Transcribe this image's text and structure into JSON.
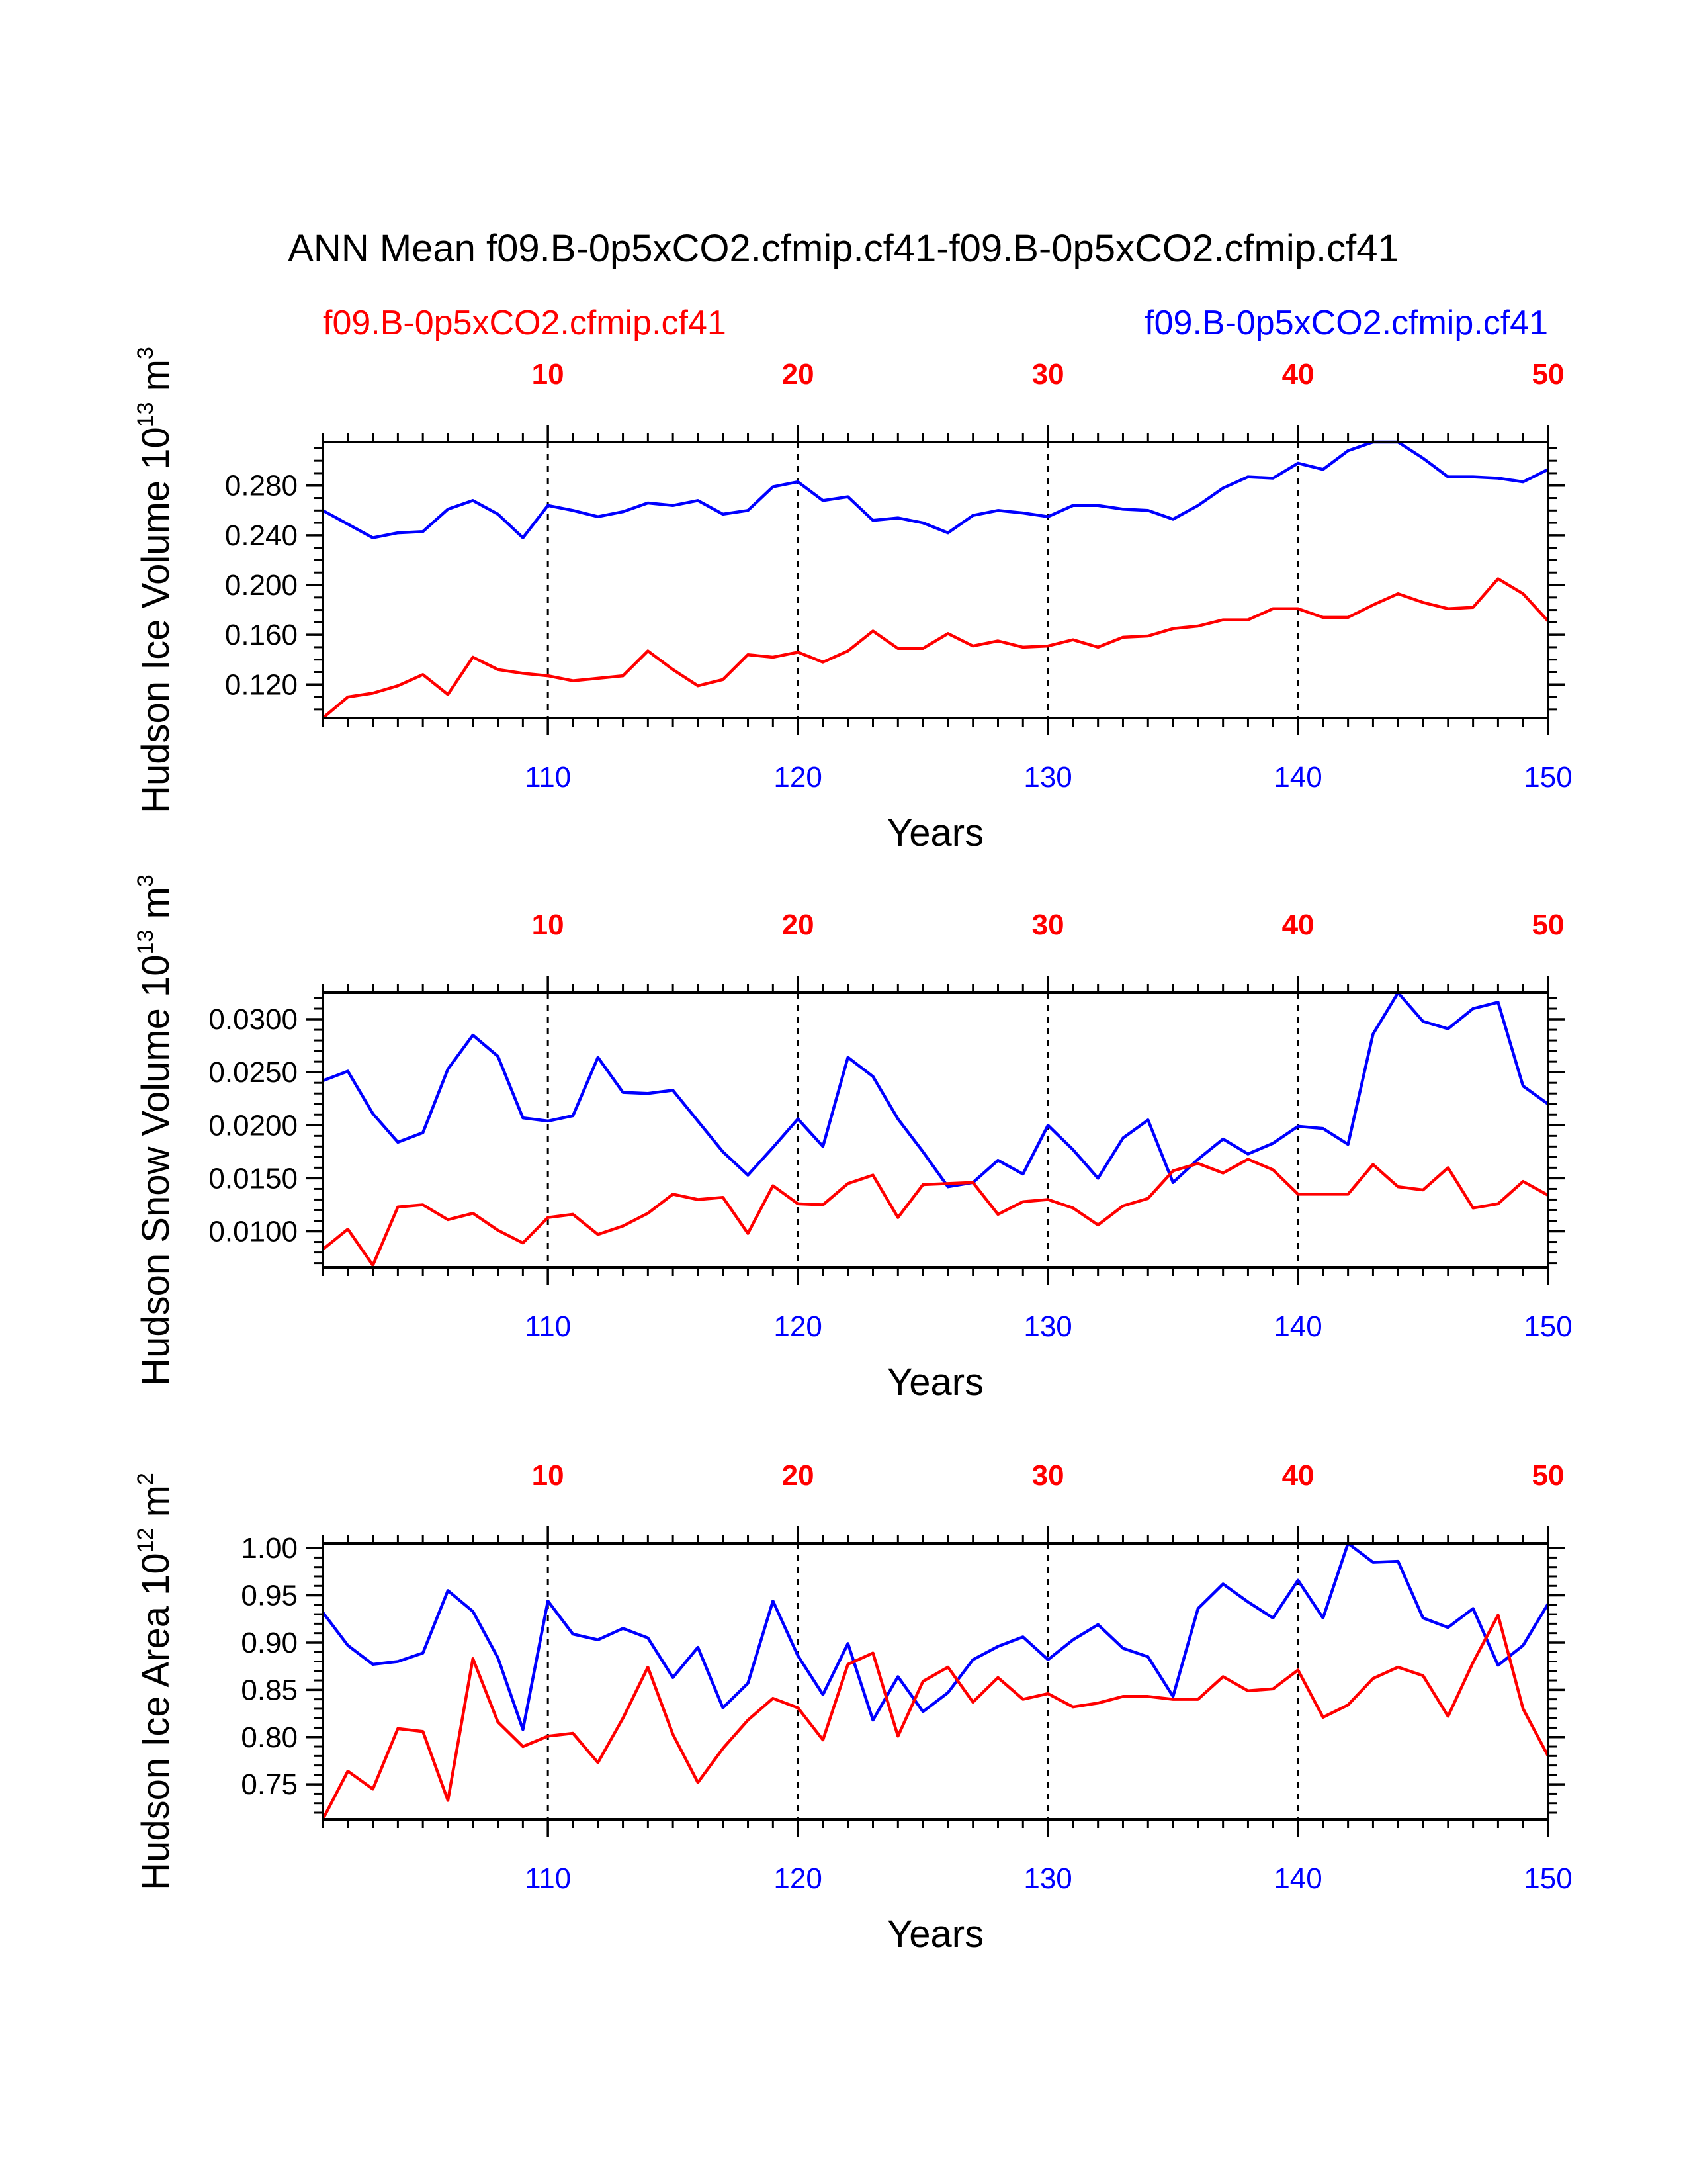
{
  "title": "ANN Mean f09.B-0p5xCO2.cfmip.cf41-f09.B-0p5xCO2.cfmip.cf41",
  "legend": {
    "left": {
      "label": "f09.B-0p5xCO2.cfmip.cf41",
      "color": "#ff0000"
    },
    "right": {
      "label": "f09.B-0p5xCO2.cfmip.cf41",
      "color": "#0000ff"
    }
  },
  "colors": {
    "series_red": "#ff0000",
    "series_blue": "#0000ff",
    "axis": "#000000"
  },
  "chart_data": [
    {
      "type": "line",
      "ylabel_main": "Hudson Ice Volume 10",
      "ylabel_exp": "13",
      "ylabel_unit": " m",
      "ylabel_unit_exp": "3",
      "xlabel": "Years",
      "x_bottom": {
        "range": [
          101,
          150
        ],
        "ticks": [
          110,
          120,
          130,
          140,
          150
        ]
      },
      "x_top": {
        "range": [
          1,
          50
        ],
        "ticks": [
          10,
          20,
          30,
          40,
          50
        ]
      },
      "y_range": [
        0.093,
        0.315
      ],
      "y_major_ticks": [
        0.12,
        0.16,
        0.2,
        0.24,
        0.28
      ],
      "y_tick_labels": [
        "0.120",
        "0.160",
        "0.200",
        "0.240",
        "0.280"
      ],
      "y_minor_step": 0.01,
      "series": [
        {
          "name": "f09.B-0p5xCO2.cfmip.cf41 (years 101-150)",
          "color": "#0000ff",
          "x_axis": "bottom",
          "values": [
            0.26,
            0.249,
            0.238,
            0.242,
            0.243,
            0.261,
            0.268,
            0.257,
            0.238,
            0.264,
            0.26,
            0.255,
            0.259,
            0.266,
            0.264,
            0.268,
            0.257,
            0.26,
            0.279,
            0.283,
            0.268,
            0.271,
            0.252,
            0.254,
            0.25,
            0.242,
            0.256,
            0.26,
            0.258,
            0.255,
            0.264,
            0.264,
            0.261,
            0.26,
            0.253,
            0.264,
            0.278,
            0.287,
            0.286,
            0.298,
            0.293,
            0.308,
            0.316,
            0.315,
            0.302,
            0.287,
            0.287,
            0.286,
            0.283,
            0.293
          ]
        },
        {
          "name": "f09.B-0p5xCO2.cfmip.cf41 (years 1-50)",
          "color": "#ff0000",
          "x_axis": "top",
          "values": [
            0.093,
            0.11,
            0.113,
            0.119,
            0.128,
            0.112,
            0.142,
            0.132,
            0.129,
            0.127,
            0.123,
            0.125,
            0.127,
            0.147,
            0.132,
            0.119,
            0.124,
            0.144,
            0.142,
            0.146,
            0.138,
            0.147,
            0.163,
            0.149,
            0.149,
            0.161,
            0.151,
            0.155,
            0.15,
            0.151,
            0.156,
            0.15,
            0.158,
            0.159,
            0.165,
            0.167,
            0.172,
            0.172,
            0.181,
            0.181,
            0.174,
            0.174,
            0.184,
            0.193,
            0.186,
            0.181,
            0.182,
            0.205,
            0.193,
            0.171
          ]
        }
      ]
    },
    {
      "type": "line",
      "ylabel_main": "Hudson Snow Volume 10",
      "ylabel_exp": "13",
      "ylabel_unit": " m",
      "ylabel_unit_exp": "3",
      "xlabel": "Years",
      "x_bottom": {
        "range": [
          101,
          150
        ],
        "ticks": [
          110,
          120,
          130,
          140,
          150
        ]
      },
      "x_top": {
        "range": [
          1,
          50
        ],
        "ticks": [
          10,
          20,
          30,
          40,
          50
        ]
      },
      "y_range": [
        0.0066,
        0.0325
      ],
      "y_major_ticks": [
        0.01,
        0.015,
        0.02,
        0.025,
        0.03
      ],
      "y_tick_labels": [
        "0.0100",
        "0.0150",
        "0.0200",
        "0.0250",
        "0.0300"
      ],
      "y_minor_step": 0.001,
      "series": [
        {
          "name": "f09.B-0p5xCO2.cfmip.cf41 (years 101-150)",
          "color": "#0000ff",
          "x_axis": "bottom",
          "values": [
            0.0242,
            0.0251,
            0.0211,
            0.0184,
            0.0193,
            0.0253,
            0.0285,
            0.0265,
            0.0207,
            0.0204,
            0.0209,
            0.0264,
            0.0231,
            0.023,
            0.0233,
            0.0204,
            0.0175,
            0.0153,
            0.0179,
            0.0206,
            0.018,
            0.0264,
            0.0246,
            0.0206,
            0.0175,
            0.0142,
            0.0146,
            0.0167,
            0.0154,
            0.02,
            0.0177,
            0.015,
            0.0188,
            0.0205,
            0.0146,
            0.0168,
            0.0187,
            0.0173,
            0.0183,
            0.0199,
            0.0197,
            0.0182,
            0.0286,
            0.0327,
            0.0298,
            0.0291,
            0.031,
            0.0316,
            0.0237,
            0.022
          ]
        },
        {
          "name": "f09.B-0p5xCO2.cfmip.cf41 (years 1-50)",
          "color": "#ff0000",
          "x_axis": "top",
          "values": [
            0.0083,
            0.0102,
            0.0068,
            0.0123,
            0.0125,
            0.0111,
            0.0117,
            0.0101,
            0.0089,
            0.0113,
            0.0116,
            0.0097,
            0.0105,
            0.0117,
            0.0135,
            0.013,
            0.0132,
            0.0098,
            0.0143,
            0.0126,
            0.0125,
            0.0145,
            0.0153,
            0.0113,
            0.0144,
            0.0145,
            0.0146,
            0.0116,
            0.0128,
            0.013,
            0.0122,
            0.0106,
            0.0124,
            0.0131,
            0.0157,
            0.0164,
            0.0155,
            0.0168,
            0.0158,
            0.0135,
            0.0135,
            0.0135,
            0.0163,
            0.0142,
            0.0139,
            0.016,
            0.0122,
            0.0126,
            0.0147,
            0.0134
          ]
        }
      ]
    },
    {
      "type": "line",
      "ylabel_main": "Hudson Ice Area 10",
      "ylabel_exp": "12",
      "ylabel_unit": " m",
      "ylabel_unit_exp": "2",
      "xlabel": "Years",
      "x_bottom": {
        "range": [
          101,
          150
        ],
        "ticks": [
          110,
          120,
          130,
          140,
          150
        ]
      },
      "x_top": {
        "range": [
          1,
          50
        ],
        "ticks": [
          10,
          20,
          30,
          40,
          50
        ]
      },
      "y_range": [
        0.713,
        1.005
      ],
      "y_major_ticks": [
        0.75,
        0.8,
        0.85,
        0.9,
        0.95,
        1.0
      ],
      "y_tick_labels": [
        "0.75",
        "0.80",
        "0.85",
        "0.90",
        "0.95",
        "1.00"
      ],
      "y_minor_step": 0.01,
      "series": [
        {
          "name": "f09.B-0p5xCO2.cfmip.cf41 (years 101-150)",
          "color": "#0000ff",
          "x_axis": "bottom",
          "values": [
            0.932,
            0.897,
            0.877,
            0.88,
            0.889,
            0.955,
            0.933,
            0.884,
            0.808,
            0.944,
            0.909,
            0.903,
            0.915,
            0.905,
            0.863,
            0.895,
            0.831,
            0.857,
            0.944,
            0.886,
            0.845,
            0.899,
            0.818,
            0.864,
            0.827,
            0.847,
            0.882,
            0.896,
            0.906,
            0.882,
            0.903,
            0.919,
            0.894,
            0.885,
            0.843,
            0.936,
            0.962,
            0.943,
            0.926,
            0.966,
            0.926,
            1.006,
            0.985,
            0.986,
            0.926,
            0.916,
            0.936,
            0.876,
            0.897,
            0.941
          ]
        },
        {
          "name": "f09.B-0p5xCO2.cfmip.cf41 (years 1-50)",
          "color": "#ff0000",
          "x_axis": "top",
          "values": [
            0.713,
            0.764,
            0.745,
            0.809,
            0.806,
            0.733,
            0.883,
            0.816,
            0.79,
            0.801,
            0.804,
            0.773,
            0.82,
            0.874,
            0.803,
            0.752,
            0.788,
            0.818,
            0.841,
            0.831,
            0.797,
            0.877,
            0.889,
            0.801,
            0.859,
            0.874,
            0.837,
            0.863,
            0.84,
            0.846,
            0.832,
            0.836,
            0.843,
            0.843,
            0.84,
            0.84,
            0.864,
            0.849,
            0.851,
            0.871,
            0.821,
            0.834,
            0.862,
            0.874,
            0.865,
            0.822,
            0.879,
            0.929,
            0.83,
            0.78
          ]
        }
      ]
    }
  ]
}
